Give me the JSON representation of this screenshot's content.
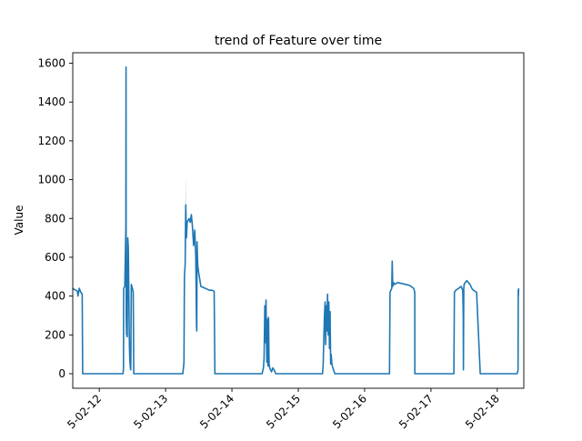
{
  "chart_data": {
    "type": "line",
    "title": "trend of Feature over time",
    "xlabel": "",
    "ylabel": "Value",
    "ylim": [
      -75,
      1654
    ],
    "xlim": [
      "2025-02-11 14:24",
      "2025-02-18 09:36"
    ],
    "yticks": [
      0,
      200,
      400,
      600,
      800,
      1000,
      1200,
      1400,
      1600
    ],
    "xticks": [
      "2025-02-12",
      "2025-02-13",
      "2025-02-14",
      "2025-02-15",
      "2025-02-16",
      "2025-02-17",
      "2025-02-18"
    ],
    "xtick_labels": [
      "5-02-12",
      "5-02-13",
      "5-02-14",
      "5-02-15",
      "5-02-16",
      "5-02-17",
      "5-02-18"
    ],
    "grid": false,
    "line_color": "#1f77b4",
    "band_color": "#1f77b4",
    "series": [
      {
        "x": [
          "2025-02-11 14:18",
          "2025-02-11 14:54",
          "2025-02-11 15:30",
          "2025-02-11 16:06",
          "2025-02-11 16:17",
          "2025-02-11 16:46",
          "2025-02-11 17:17",
          "2025-02-11 17:49",
          "2025-02-11 18:00",
          "2025-02-12 08:35",
          "2025-02-12 08:45",
          "2025-02-12 08:50",
          "2025-02-12 09:13",
          "2025-02-12 09:25",
          "2025-02-12 09:37",
          "2025-02-12 09:40",
          "2025-02-12 09:43",
          "2025-02-12 09:45",
          "2025-02-12 09:48",
          "2025-02-12 09:52",
          "2025-02-12 09:59",
          "2025-02-12 10:06",
          "2025-02-12 10:18",
          "2025-02-12 10:30",
          "2025-02-12 10:42",
          "2025-02-12 10:49",
          "2025-02-12 10:56",
          "2025-02-12 10:59",
          "2025-02-12 11:02",
          "2025-02-12 11:06",
          "2025-02-12 11:11",
          "2025-02-12 11:16",
          "2025-02-12 11:23",
          "2025-02-12 11:35",
          "2025-02-12 11:47",
          "2025-02-12 12:00",
          "2025-02-12 12:17",
          "2025-02-12 12:29",
          "2025-02-12 12:36",
          "2025-02-12 12:50",
          "2025-02-12 13:02",
          "2025-02-12 13:14",
          "2025-02-12 13:26",
          "2025-02-12 13:38",
          "2025-02-12 13:50",
          "2025-02-12 14:31",
          "2025-02-12 14:53",
          "2025-02-12 15:17",
          "2025-02-12 15:48",
          "2025-02-12 16:05",
          "2025-02-13 06:14",
          "2025-02-13 06:38",
          "2025-02-13 06:48",
          "2025-02-13 07:05",
          "2025-02-13 07:17",
          "2025-02-13 07:31",
          "2025-02-13 07:48",
          "2025-02-13 08:29",
          "2025-02-13 08:55",
          "2025-02-13 09:19",
          "2025-02-13 09:43",
          "2025-02-13 10:07",
          "2025-02-13 10:31",
          "2025-02-13 10:55",
          "2025-02-13 11:10",
          "2025-02-13 11:17",
          "2025-02-13 11:22",
          "2025-02-13 11:36",
          "2025-02-13 11:58",
          "2025-02-13 12:46",
          "2025-02-13 13:34",
          "2025-02-13 14:22",
          "2025-02-13 15:10",
          "2025-02-13 15:58",
          "2025-02-13 16:46",
          "2025-02-13 17:34",
          "2025-02-13 17:50",
          "2025-02-14 08:50",
          "2025-02-14 09:55",
          "2025-02-14 10:55",
          "2025-02-14 11:24",
          "2025-02-14 11:38",
          "2025-02-14 11:53",
          "2025-02-14 12:05",
          "2025-02-14 12:19",
          "2025-02-14 12:36",
          "2025-02-14 12:48",
          "2025-02-14 13:00",
          "2025-02-14 13:14",
          "2025-02-14 13:26",
          "2025-02-14 13:41",
          "2025-02-14 13:58",
          "2025-02-14 14:19",
          "2025-02-14 14:46",
          "2025-02-14 15:12",
          "2025-02-14 15:53",
          "2025-02-14 16:36",
          "2025-02-14 17:17",
          "2025-02-15 07:55",
          "2025-02-15 08:48",
          "2025-02-15 09:00",
          "2025-02-15 09:17",
          "2025-02-15 09:29",
          "2025-02-15 09:42",
          "2025-02-15 09:54",
          "2025-02-15 10:06",
          "2025-02-15 10:20",
          "2025-02-15 10:35",
          "2025-02-15 10:49",
          "2025-02-15 11:04",
          "2025-02-15 11:18",
          "2025-02-15 11:30",
          "2025-02-15 11:42",
          "2025-02-15 11:54",
          "2025-02-15 12:07",
          "2025-02-15 12:19",
          "2025-02-15 12:46",
          "2025-02-15 13:13",
          "2025-02-15 13:46",
          "2025-02-15 14:22",
          "2025-02-15 15:03",
          "2025-02-15 15:43",
          "2025-02-15 16:24",
          "2025-02-16 09:01",
          "2025-02-16 09:12",
          "2025-02-16 09:50",
          "2025-02-16 10:00",
          "2025-02-16 10:12",
          "2025-02-16 10:26",
          "2025-02-16 10:53",
          "2025-02-16 12:00",
          "2025-02-16 13:26",
          "2025-02-16 14:53",
          "2025-02-16 16:19",
          "2025-02-16 17:46",
          "2025-02-16 18:08",
          "2025-02-16 18:10",
          "2025-02-17 08:17",
          "2025-02-17 08:29",
          "2025-02-17 09:02",
          "2025-02-17 10:00",
          "2025-02-17 10:53",
          "2025-02-17 11:31",
          "2025-02-17 11:41",
          "2025-02-17 11:46",
          "2025-02-17 11:53",
          "2025-02-17 12:01",
          "2025-02-17 12:24",
          "2025-02-17 12:58",
          "2025-02-17 13:34",
          "2025-02-17 14:10",
          "2025-02-17 14:46",
          "2025-02-17 15:22",
          "2025-02-17 16:31",
          "2025-02-17 17:50",
          "2025-02-17 18:07",
          "2025-02-18 07:12",
          "2025-02-18 07:31",
          "2025-02-18 07:36",
          "2025-02-18 07:38",
          "2025-02-18 07:41",
          "2025-02-18 07:43"
        ],
        "y": [
          440,
          435,
          430,
          425,
          400,
          440,
          420,
          410,
          0,
          0,
          30,
          440,
          450,
          600,
          750,
          1580,
          700,
          300,
          250,
          200,
          280,
          190,
          700,
          650,
          400,
          240,
          130,
          100,
          80,
          60,
          40,
          30,
          20,
          460,
          450,
          440,
          420,
          0,
          0,
          0,
          0,
          0,
          0,
          0,
          0,
          0,
          0,
          0,
          0,
          0,
          0,
          60,
          500,
          560,
          870,
          700,
          780,
          800,
          780,
          820,
          760,
          660,
          740,
          600,
          250,
          220,
          680,
          560,
          520,
          450,
          445,
          440,
          435,
          430,
          430,
          425,
          0,
          0,
          0,
          0,
          30,
          80,
          350,
          160,
          380,
          60,
          280,
          40,
          290,
          50,
          30,
          20,
          10,
          30,
          20,
          0,
          0,
          0,
          0,
          0,
          50,
          200,
          300,
          370,
          150,
          350,
          220,
          410,
          200,
          370,
          130,
          320,
          50,
          100,
          60,
          40,
          20,
          0,
          0,
          0,
          0,
          0,
          0,
          0,
          420,
          440,
          580,
          450,
          470,
          460,
          470,
          465,
          460,
          455,
          440,
          420,
          0,
          0,
          420,
          430,
          440,
          450,
          430,
          300,
          20,
          440,
          460,
          470,
          480,
          470,
          460,
          440,
          430,
          420,
          0,
          0,
          0,
          20,
          430,
          400,
          420,
          440
        ]
      }
    ],
    "band": {
      "x": [
        "2025-02-12 09:37",
        "2025-02-12 09:40",
        "2025-02-12 09:43",
        "2025-02-13 06:48",
        "2025-02-13 07:17",
        "2025-02-13 07:31"
      ],
      "upper": [
        760,
        1580,
        760,
        700,
        1020,
        780
      ],
      "lower": [
        720,
        1580,
        720,
        640,
        780,
        740
      ]
    }
  }
}
